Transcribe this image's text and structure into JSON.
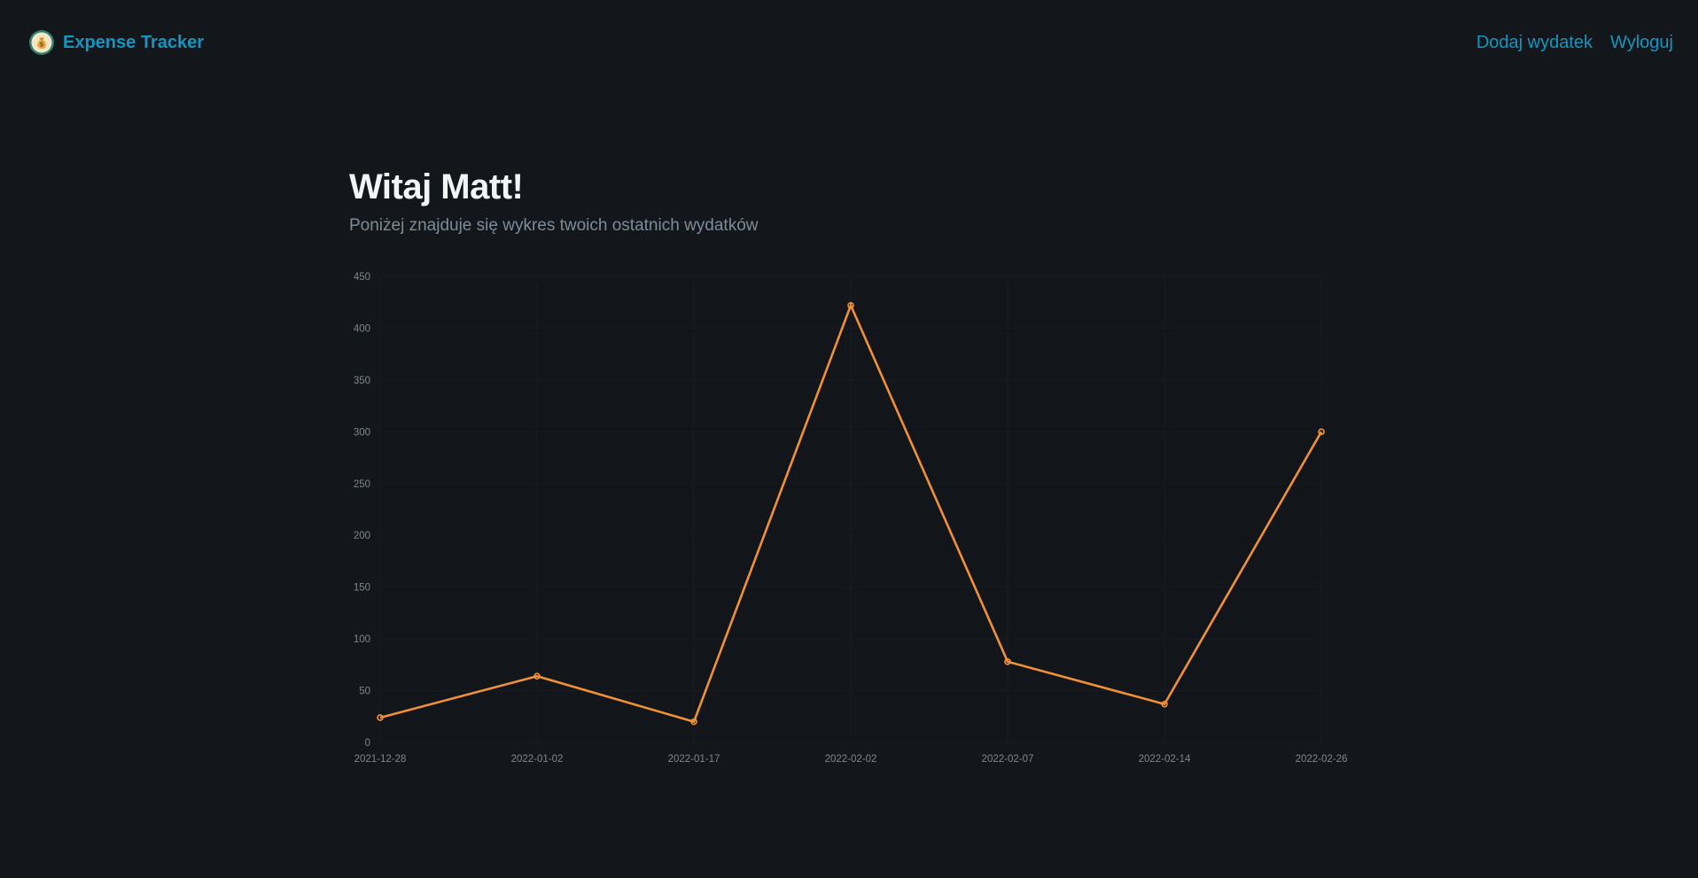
{
  "navbar": {
    "brand_name": "Expense Tracker",
    "logo_icon": "money-bag-icon",
    "links": [
      {
        "label": "Dodaj wydatek"
      },
      {
        "label": "Wyloguj"
      }
    ]
  },
  "main": {
    "greeting": "Witaj Matt!",
    "subtitle": "Poniżej znajduje się wykres twoich ostatnich wydatków"
  },
  "colors": {
    "background": "#13171c",
    "accent": "#1795be",
    "line": "#f0913a"
  },
  "chart_data": {
    "type": "line",
    "categories": [
      "2021-12-28",
      "2022-01-02",
      "2022-01-17",
      "2022-02-02",
      "2022-02-07",
      "2022-02-14",
      "2022-02-26"
    ],
    "series": [
      {
        "values": [
          24,
          64,
          20,
          422,
          78,
          37,
          300
        ]
      }
    ],
    "ylim": [
      0,
      450
    ],
    "yticks": [
      0,
      50,
      100,
      150,
      200,
      250,
      300,
      350,
      400,
      450
    ],
    "grid": true,
    "legend": "none"
  }
}
